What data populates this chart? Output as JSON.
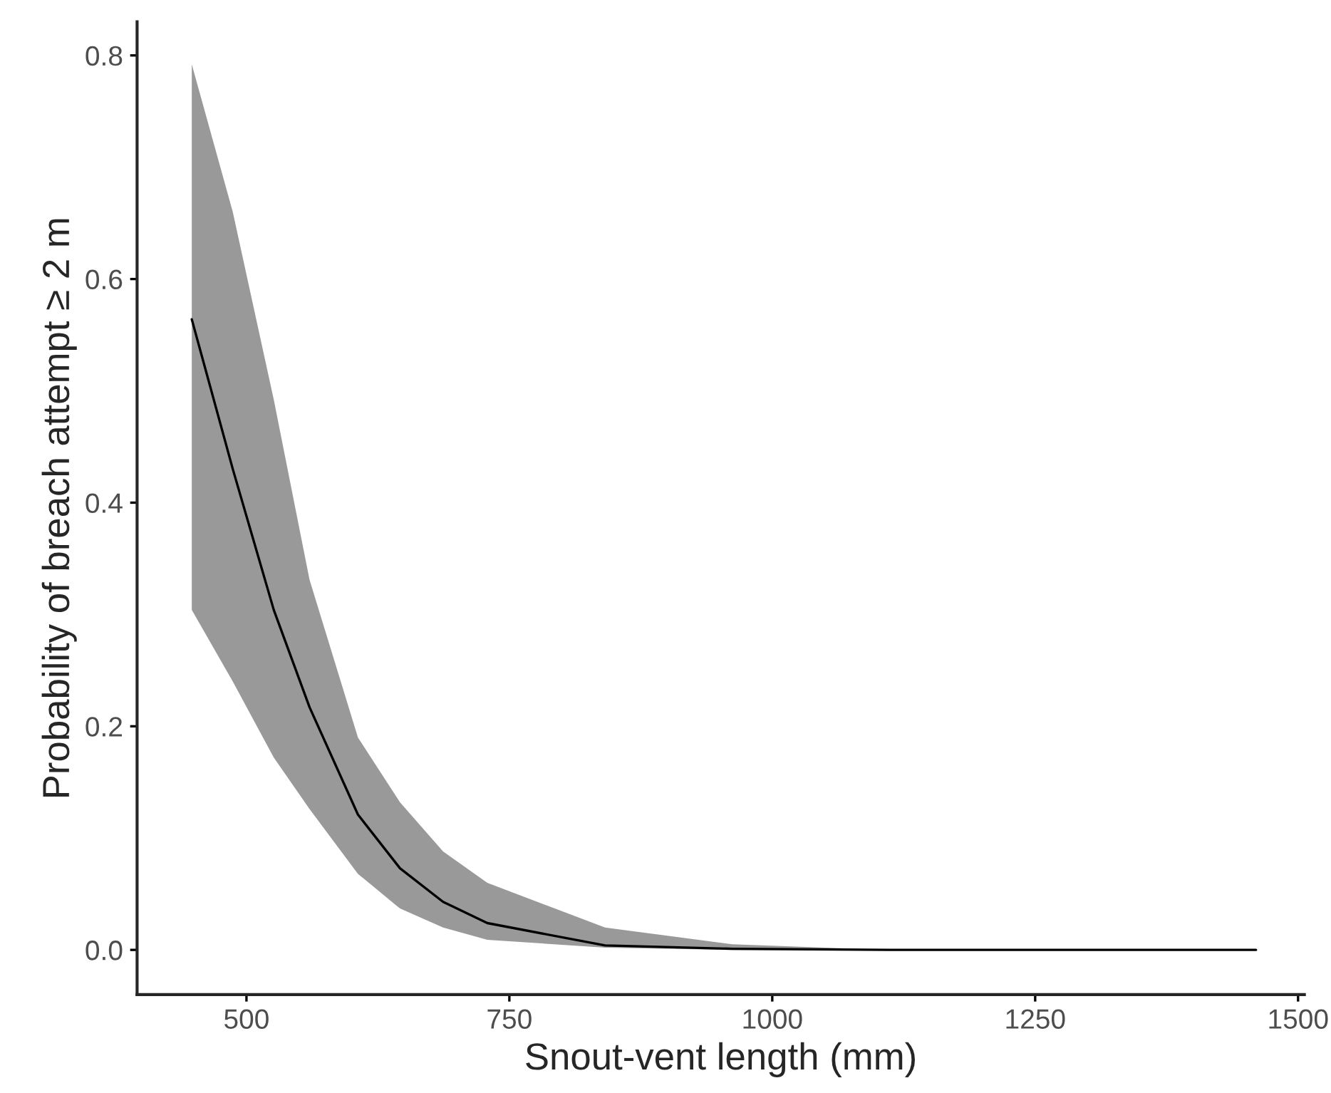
{
  "chart_data": {
    "type": "line",
    "xlabel": "Snout-vent length (mm)",
    "ylabel": "Probability of breach attempt ≥ 2 m",
    "x": [
      448,
      487,
      526,
      560,
      606,
      646,
      687,
      729,
      841,
      962,
      1111,
      1460
    ],
    "series": [
      {
        "color": "#000000",
        "values": [
          0.564,
          0.43,
          0.304,
          0.217,
          0.121,
          0.073,
          0.043,
          0.024,
          0.004,
          0.001,
          0,
          0
        ],
        "upper": [
          0.792,
          0.66,
          0.492,
          0.331,
          0.19,
          0.132,
          0.088,
          0.06,
          0.02,
          0.005,
          0,
          0
        ],
        "lower": [
          0.304,
          0.24,
          0.172,
          0.126,
          0.068,
          0.037,
          0.02,
          0.009,
          0.002,
          0,
          0,
          0
        ]
      }
    ],
    "xlim": [
      396,
      1506
    ],
    "ylim": [
      -0.04,
      0.83
    ],
    "xticks": [
      500,
      750,
      1000,
      1250,
      1500
    ],
    "yticks": [
      {
        "value": 0,
        "label": "0.0"
      },
      {
        "value": 0.2,
        "label": "0.2"
      },
      {
        "value": 0.4,
        "label": "0.4"
      },
      {
        "value": 0.6,
        "label": "0.6"
      },
      {
        "value": 0.8,
        "label": "0.8"
      }
    ],
    "grid": false,
    "line_style": "solid"
  }
}
